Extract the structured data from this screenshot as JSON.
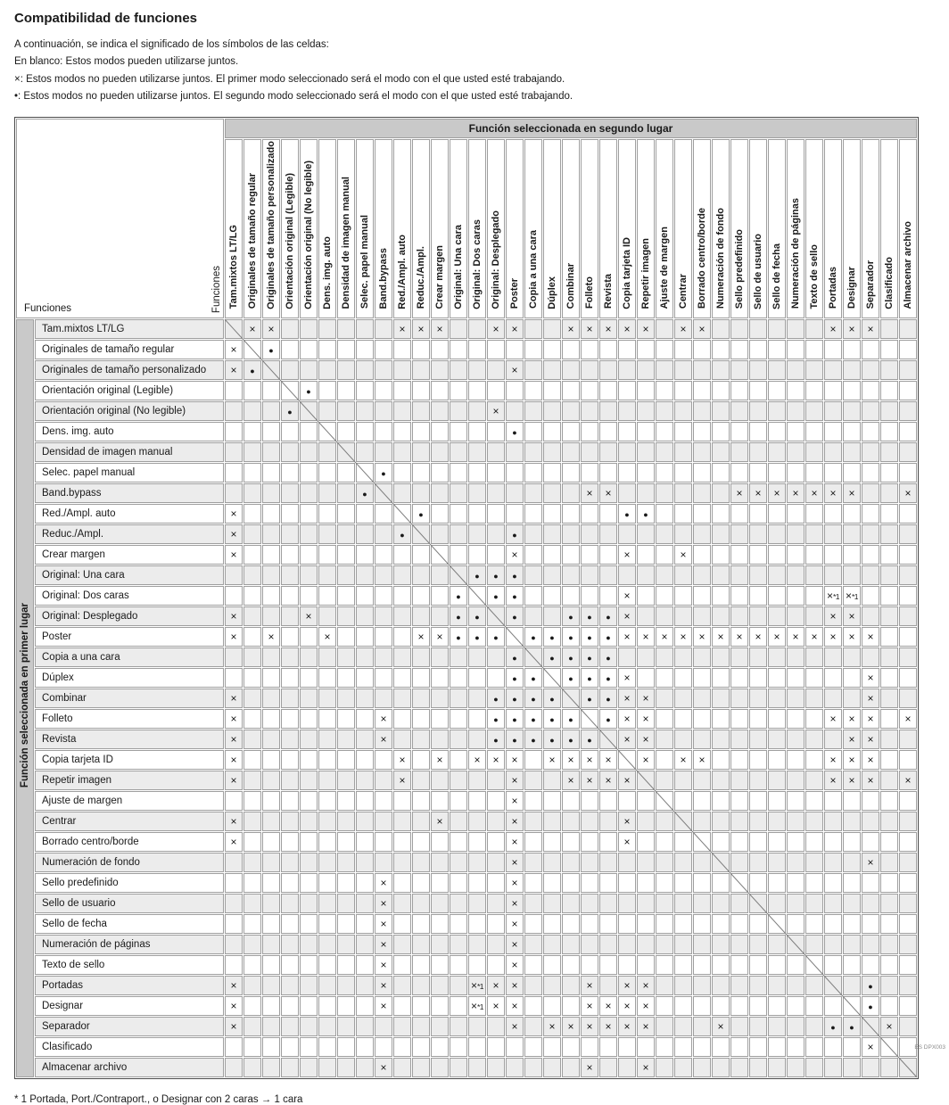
{
  "title": "Compatibilidad de funciones",
  "legend": [
    "A continuación, se indica el significado de los símbolos de las celdas:",
    "En blanco: Estos modos pueden utilizarse juntos.",
    "×: Estos modos no pueden utilizarse juntos. El primer modo seleccionado será el modo con el que usted esté trabajando.",
    "•: Estos modos no pueden utilizarse juntos. El segundo modo seleccionado será el modo con el que usted esté trabajando."
  ],
  "table": {
    "corner_label": "Funciones",
    "corner_label_rotated": "Funciones",
    "col_group_header": "Función seleccionada en segundo lugar",
    "row_group_header": "Función seleccionada en primer lugar",
    "functions": [
      "Tam.mixtos LT/LG",
      "Originales de tamaño regular",
      "Originales de tamaño personalizado",
      "Orientación original (Legible)",
      "Orientación original (No legible)",
      "Dens. img. auto",
      "Densidad de imagen manual",
      "Selec. papel manual",
      "Band.bypass",
      "Red./Ampl. auto",
      "Reduc./Ampl.",
      "Crear margen",
      "Original: Una cara",
      "Original: Dos caras",
      "Original: Desplegado",
      "Poster",
      "Copia a una cara",
      "Dúplex",
      "Combinar",
      "Folleto",
      "Revista",
      "Copia tarjeta ID",
      "Repetir imagen",
      "Ajuste de margen",
      "Centrar",
      "Borrado centro/borde",
      "Numeración de fondo",
      "Sello predefinido",
      "Sello de usuario",
      "Sello de fecha",
      "Numeración de páginas",
      "Texto de sello",
      "Portadas",
      "Designar",
      "Separador",
      "Clasificado",
      "Almacenar archivo"
    ],
    "symbols": {
      "x": "×",
      "dot": "●",
      "x1": "×*1"
    },
    "marks": {
      "1": {
        "2": "x",
        "3": "x",
        "10": "x",
        "11": "x",
        "12": "x",
        "15": "x",
        "16": "x",
        "19": "x",
        "20": "x",
        "21": "x",
        "22": "x",
        "23": "x",
        "25": "x",
        "26": "x",
        "33": "x",
        "34": "x",
        "35": "x"
      },
      "2": {
        "1": "x",
        "3": "d"
      },
      "3": {
        "1": "x",
        "2": "d",
        "16": "x"
      },
      "4": {
        "5": "d"
      },
      "5": {
        "4": "d",
        "15": "x"
      },
      "6": {
        "16": "d"
      },
      "7": {},
      "8": {
        "9": "d"
      },
      "9": {
        "8": "d",
        "20": "x",
        "21": "x",
        "28": "x",
        "29": "x",
        "30": "x",
        "31": "x",
        "32": "x",
        "33": "x",
        "34": "x",
        "37": "x"
      },
      "10": {
        "1": "x",
        "11": "d",
        "22": "d",
        "23": "d"
      },
      "11": {
        "1": "x",
        "10": "d",
        "16": "d"
      },
      "12": {
        "1": "x",
        "16": "x",
        "22": "x",
        "25": "x"
      },
      "13": {
        "14": "d",
        "15": "d",
        "16": "d"
      },
      "14": {
        "13": "d",
        "15": "d",
        "16": "d",
        "22": "x",
        "33": "x1",
        "34": "x1"
      },
      "15": {
        "1": "x",
        "5": "x",
        "13": "d",
        "14": "d",
        "16": "d",
        "19": "d",
        "20": "d",
        "21": "d",
        "22": "x",
        "33": "x",
        "34": "x"
      },
      "16": {
        "1": "x",
        "3": "x",
        "6": "x",
        "11": "x",
        "12": "x",
        "13": "d",
        "14": "d",
        "15": "d",
        "17": "d",
        "18": "d",
        "19": "d",
        "20": "d",
        "21": "d",
        "22": "x",
        "23": "x",
        "24": "x",
        "25": "x",
        "26": "x",
        "27": "x",
        "28": "x",
        "29": "x",
        "30": "x",
        "31": "x",
        "32": "x",
        "33": "x",
        "34": "x",
        "35": "x"
      },
      "17": {
        "16": "d",
        "18": "d",
        "19": "d",
        "20": "d",
        "21": "d"
      },
      "18": {
        "16": "d",
        "17": "d",
        "19": "d",
        "20": "d",
        "21": "d",
        "22": "x",
        "35": "x"
      },
      "19": {
        "1": "x",
        "15": "d",
        "16": "d",
        "17": "d",
        "18": "d",
        "20": "d",
        "21": "d",
        "22": "x",
        "23": "x",
        "35": "x"
      },
      "20": {
        "1": "x",
        "9": "x",
        "15": "d",
        "16": "d",
        "17": "d",
        "18": "d",
        "19": "d",
        "21": "d",
        "22": "x",
        "23": "x",
        "33": "x",
        "34": "x",
        "35": "x",
        "37": "x"
      },
      "21": {
        "1": "x",
        "9": "x",
        "15": "d",
        "16": "d",
        "17": "d",
        "18": "d",
        "19": "d",
        "20": "d",
        "22": "x",
        "23": "x",
        "34": "x",
        "35": "x"
      },
      "22": {
        "1": "x",
        "10": "x",
        "12": "x",
        "14": "x",
        "15": "x",
        "16": "x",
        "18": "x",
        "19": "x",
        "20": "x",
        "21": "x",
        "23": "x",
        "25": "x",
        "26": "x",
        "33": "x",
        "34": "x",
        "35": "x"
      },
      "23": {
        "1": "x",
        "10": "x",
        "16": "x",
        "19": "x",
        "20": "x",
        "21": "x",
        "22": "x",
        "33": "x",
        "34": "x",
        "35": "x",
        "37": "x"
      },
      "24": {
        "16": "x"
      },
      "25": {
        "1": "x",
        "12": "x",
        "16": "x",
        "22": "x"
      },
      "26": {
        "1": "x",
        "16": "x",
        "22": "x"
      },
      "27": {
        "16": "x",
        "35": "x"
      },
      "28": {
        "9": "x",
        "16": "x"
      },
      "29": {
        "9": "x",
        "16": "x"
      },
      "30": {
        "9": "x",
        "16": "x"
      },
      "31": {
        "9": "x",
        "16": "x"
      },
      "32": {
        "9": "x",
        "16": "x"
      },
      "33": {
        "1": "x",
        "9": "x",
        "14": "x1",
        "15": "x",
        "16": "x",
        "20": "x",
        "22": "x",
        "23": "x",
        "35": "d"
      },
      "34": {
        "1": "x",
        "9": "x",
        "14": "x1",
        "15": "x",
        "16": "x",
        "20": "x",
        "21": "x",
        "22": "x",
        "23": "x",
        "35": "d"
      },
      "35": {
        "1": "x",
        "16": "x",
        "18": "x",
        "19": "x",
        "20": "x",
        "21": "x",
        "22": "x",
        "23": "x",
        "27": "x",
        "33": "d",
        "34": "d",
        "36": "x"
      },
      "36": {
        "35": "x"
      },
      "37": {
        "9": "x",
        "20": "x",
        "23": "x"
      }
    }
  },
  "footnote": "* 1  Portada, Port./Contraport., o Designar con 2 caras → 1 cara",
  "doc_code": "ES DPX003"
}
